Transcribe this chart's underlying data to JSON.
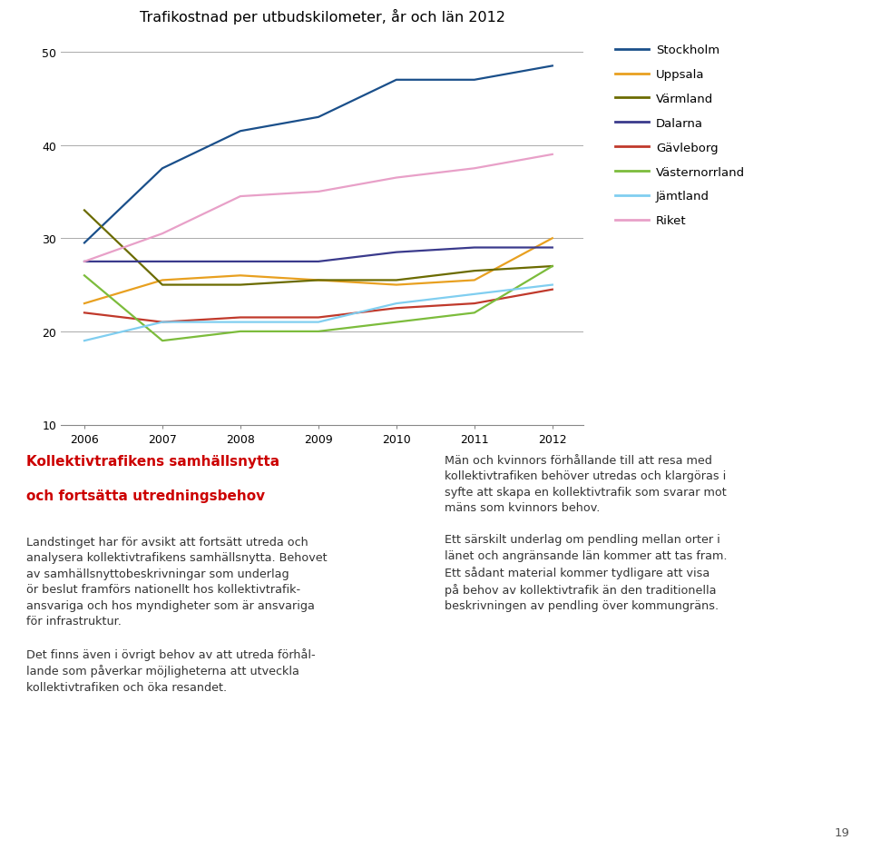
{
  "title": "Trafikostnad per utbudskilometer, år och län 2012",
  "years": [
    2006,
    2007,
    2008,
    2009,
    2010,
    2011,
    2012
  ],
  "series": [
    {
      "name": "Stockholm",
      "color": "#1a4f8a",
      "values": [
        29.5,
        37.5,
        41.5,
        43.0,
        47.0,
        47.0,
        48.5
      ]
    },
    {
      "name": "Uppsala",
      "color": "#e8a020",
      "values": [
        23.0,
        25.5,
        26.0,
        25.5,
        25.0,
        25.5,
        30.0
      ]
    },
    {
      "name": "Värmland",
      "color": "#6b6b00",
      "values": [
        33.0,
        25.0,
        25.0,
        25.5,
        25.5,
        26.5,
        27.0
      ]
    },
    {
      "name": "Dalarna",
      "color": "#3a3a8c",
      "values": [
        27.5,
        27.5,
        27.5,
        27.5,
        28.5,
        29.0,
        29.0
      ]
    },
    {
      "name": "Gävleborg",
      "color": "#c0392b",
      "values": [
        22.0,
        21.0,
        21.5,
        21.5,
        22.5,
        23.0,
        24.5
      ]
    },
    {
      "name": "Västernorrland",
      "color": "#7cbc3c",
      "values": [
        26.0,
        19.0,
        20.0,
        20.0,
        21.0,
        22.0,
        27.0
      ]
    },
    {
      "name": "Jämtland",
      "color": "#80cef0",
      "values": [
        19.0,
        21.0,
        21.0,
        21.0,
        23.0,
        24.0,
        25.0
      ]
    },
    {
      "name": "Riket",
      "color": "#e8a0c8",
      "values": [
        27.5,
        30.5,
        34.5,
        35.0,
        36.5,
        37.5,
        39.0
      ]
    }
  ],
  "ylim": [
    10,
    52
  ],
  "yticks": [
    10,
    20,
    30,
    40,
    50
  ],
  "title_fontsize": 11.5,
  "legend_fontsize": 9.5,
  "background_color": "#ffffff",
  "grid_color": "#aaaaaa",
  "heading_red_line1": "Kollektivtrafikens samhällsnytta",
  "heading_red_line2": "och fortsätta utredningsbehov",
  "left_body": "Landstinget har för avsikt att fortsätt utreda och\nanalysera kollektivtrafikens samhällsnytta. Behovet\nav samhällsnyttobeskrivningar som underlag\nör beslut framförs nationellt hos kollektivtrafik-\nansvariga och hos myndigheter som är ansvariga\nför infrastruktur.\n\nDet finns även i övrigt behov av att utreda förhål-\nlande som påverkar möjligheterna att utveckla\nkollektivtrafiken och öka resandet.",
  "right_body": "Män och kvinnors förhållande till att resa med\nkollektivtrafiken behöver utredas och klargöras i\nsyfte att skapa en kollektivtrafik som svarar mot\nmäns som kvinnors behov.\n\nEtt särskilt underlag om pendling mellan orter i\nlänet och angränsande län kommer att tas fram.\nEtt sådant material kommer tydligare att visa\npå behov av kollektivtrafik än den traditionella\nbeskrivningen av pendling över kommungräns.",
  "page_number": "19"
}
